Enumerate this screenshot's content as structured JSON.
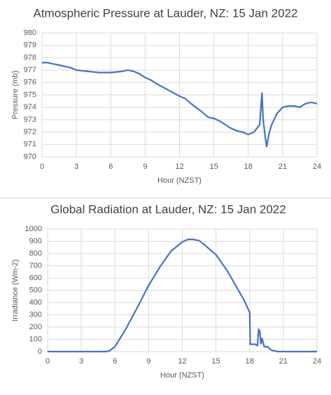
{
  "chart_data": [
    {
      "type": "line",
      "title": "Atmospheric Pressure at Lauder, NZ: 15 Jan 2022",
      "x_label": "Hour (NZST)",
      "y_label": "Pressure (mb)",
      "color": "#4472c4",
      "grid": true,
      "xlim": [
        0,
        24
      ],
      "xticks": [
        0,
        3,
        6,
        9,
        12,
        15,
        18,
        21,
        24
      ],
      "ylim": [
        970,
        980
      ],
      "yticks": [
        970,
        971,
        972,
        973,
        974,
        975,
        976,
        977,
        978,
        979,
        980
      ],
      "x": [
        0,
        0.5,
        1,
        1.5,
        2,
        2.5,
        3,
        4,
        5,
        6,
        7,
        7.5,
        8,
        8.5,
        9,
        9.5,
        10,
        11,
        12,
        12.5,
        13,
        14,
        14.5,
        15,
        15.5,
        16,
        16.5,
        17,
        17.5,
        18,
        18.5,
        19,
        19.2,
        19.3,
        19.5,
        19.6,
        19.8,
        20,
        20.5,
        21,
        21.5,
        22,
        22.5,
        23,
        23.5,
        24
      ],
      "values": [
        977.6,
        977.6,
        977.5,
        977.4,
        977.3,
        977.2,
        977.0,
        976.9,
        976.8,
        976.8,
        976.9,
        977.0,
        976.9,
        976.7,
        976.4,
        976.2,
        975.9,
        975.4,
        974.9,
        974.7,
        974.3,
        973.6,
        973.2,
        973.1,
        972.9,
        972.6,
        972.3,
        972.1,
        972.0,
        971.8,
        972.0,
        972.6,
        975.2,
        973.0,
        971.5,
        970.8,
        971.8,
        972.5,
        973.5,
        974.0,
        974.1,
        974.1,
        974.0,
        974.3,
        974.4,
        974.3
      ]
    },
    {
      "type": "line",
      "title": "Global Radiation at Lauder, NZ: 15 Jan 2022",
      "x_label": "Hour (NZST)",
      "y_label": "Irradiance (Wm-2)",
      "color": "#4472c4",
      "grid": true,
      "xlim": [
        0,
        24
      ],
      "xticks": [
        0,
        3,
        6,
        9,
        12,
        15,
        18,
        21,
        24
      ],
      "ylim": [
        0,
        1000
      ],
      "yticks": [
        0,
        100,
        200,
        300,
        400,
        500,
        600,
        700,
        800,
        900,
        1000
      ],
      "x": [
        0,
        5.2,
        5.5,
        6,
        7,
        8,
        9,
        10,
        11,
        12,
        12.5,
        13,
        13.5,
        14,
        15,
        16,
        17,
        17.5,
        18,
        18.05,
        18.5,
        18.7,
        18.8,
        18.9,
        19,
        19.1,
        19.3,
        19.6,
        19.8,
        20,
        20.5,
        24
      ],
      "values": [
        0,
        0,
        5,
        40,
        190,
        360,
        540,
        690,
        820,
        895,
        915,
        915,
        905,
        870,
        790,
        660,
        500,
        420,
        320,
        60,
        60,
        50,
        180,
        170,
        60,
        110,
        40,
        40,
        20,
        10,
        0,
        0
      ]
    }
  ]
}
